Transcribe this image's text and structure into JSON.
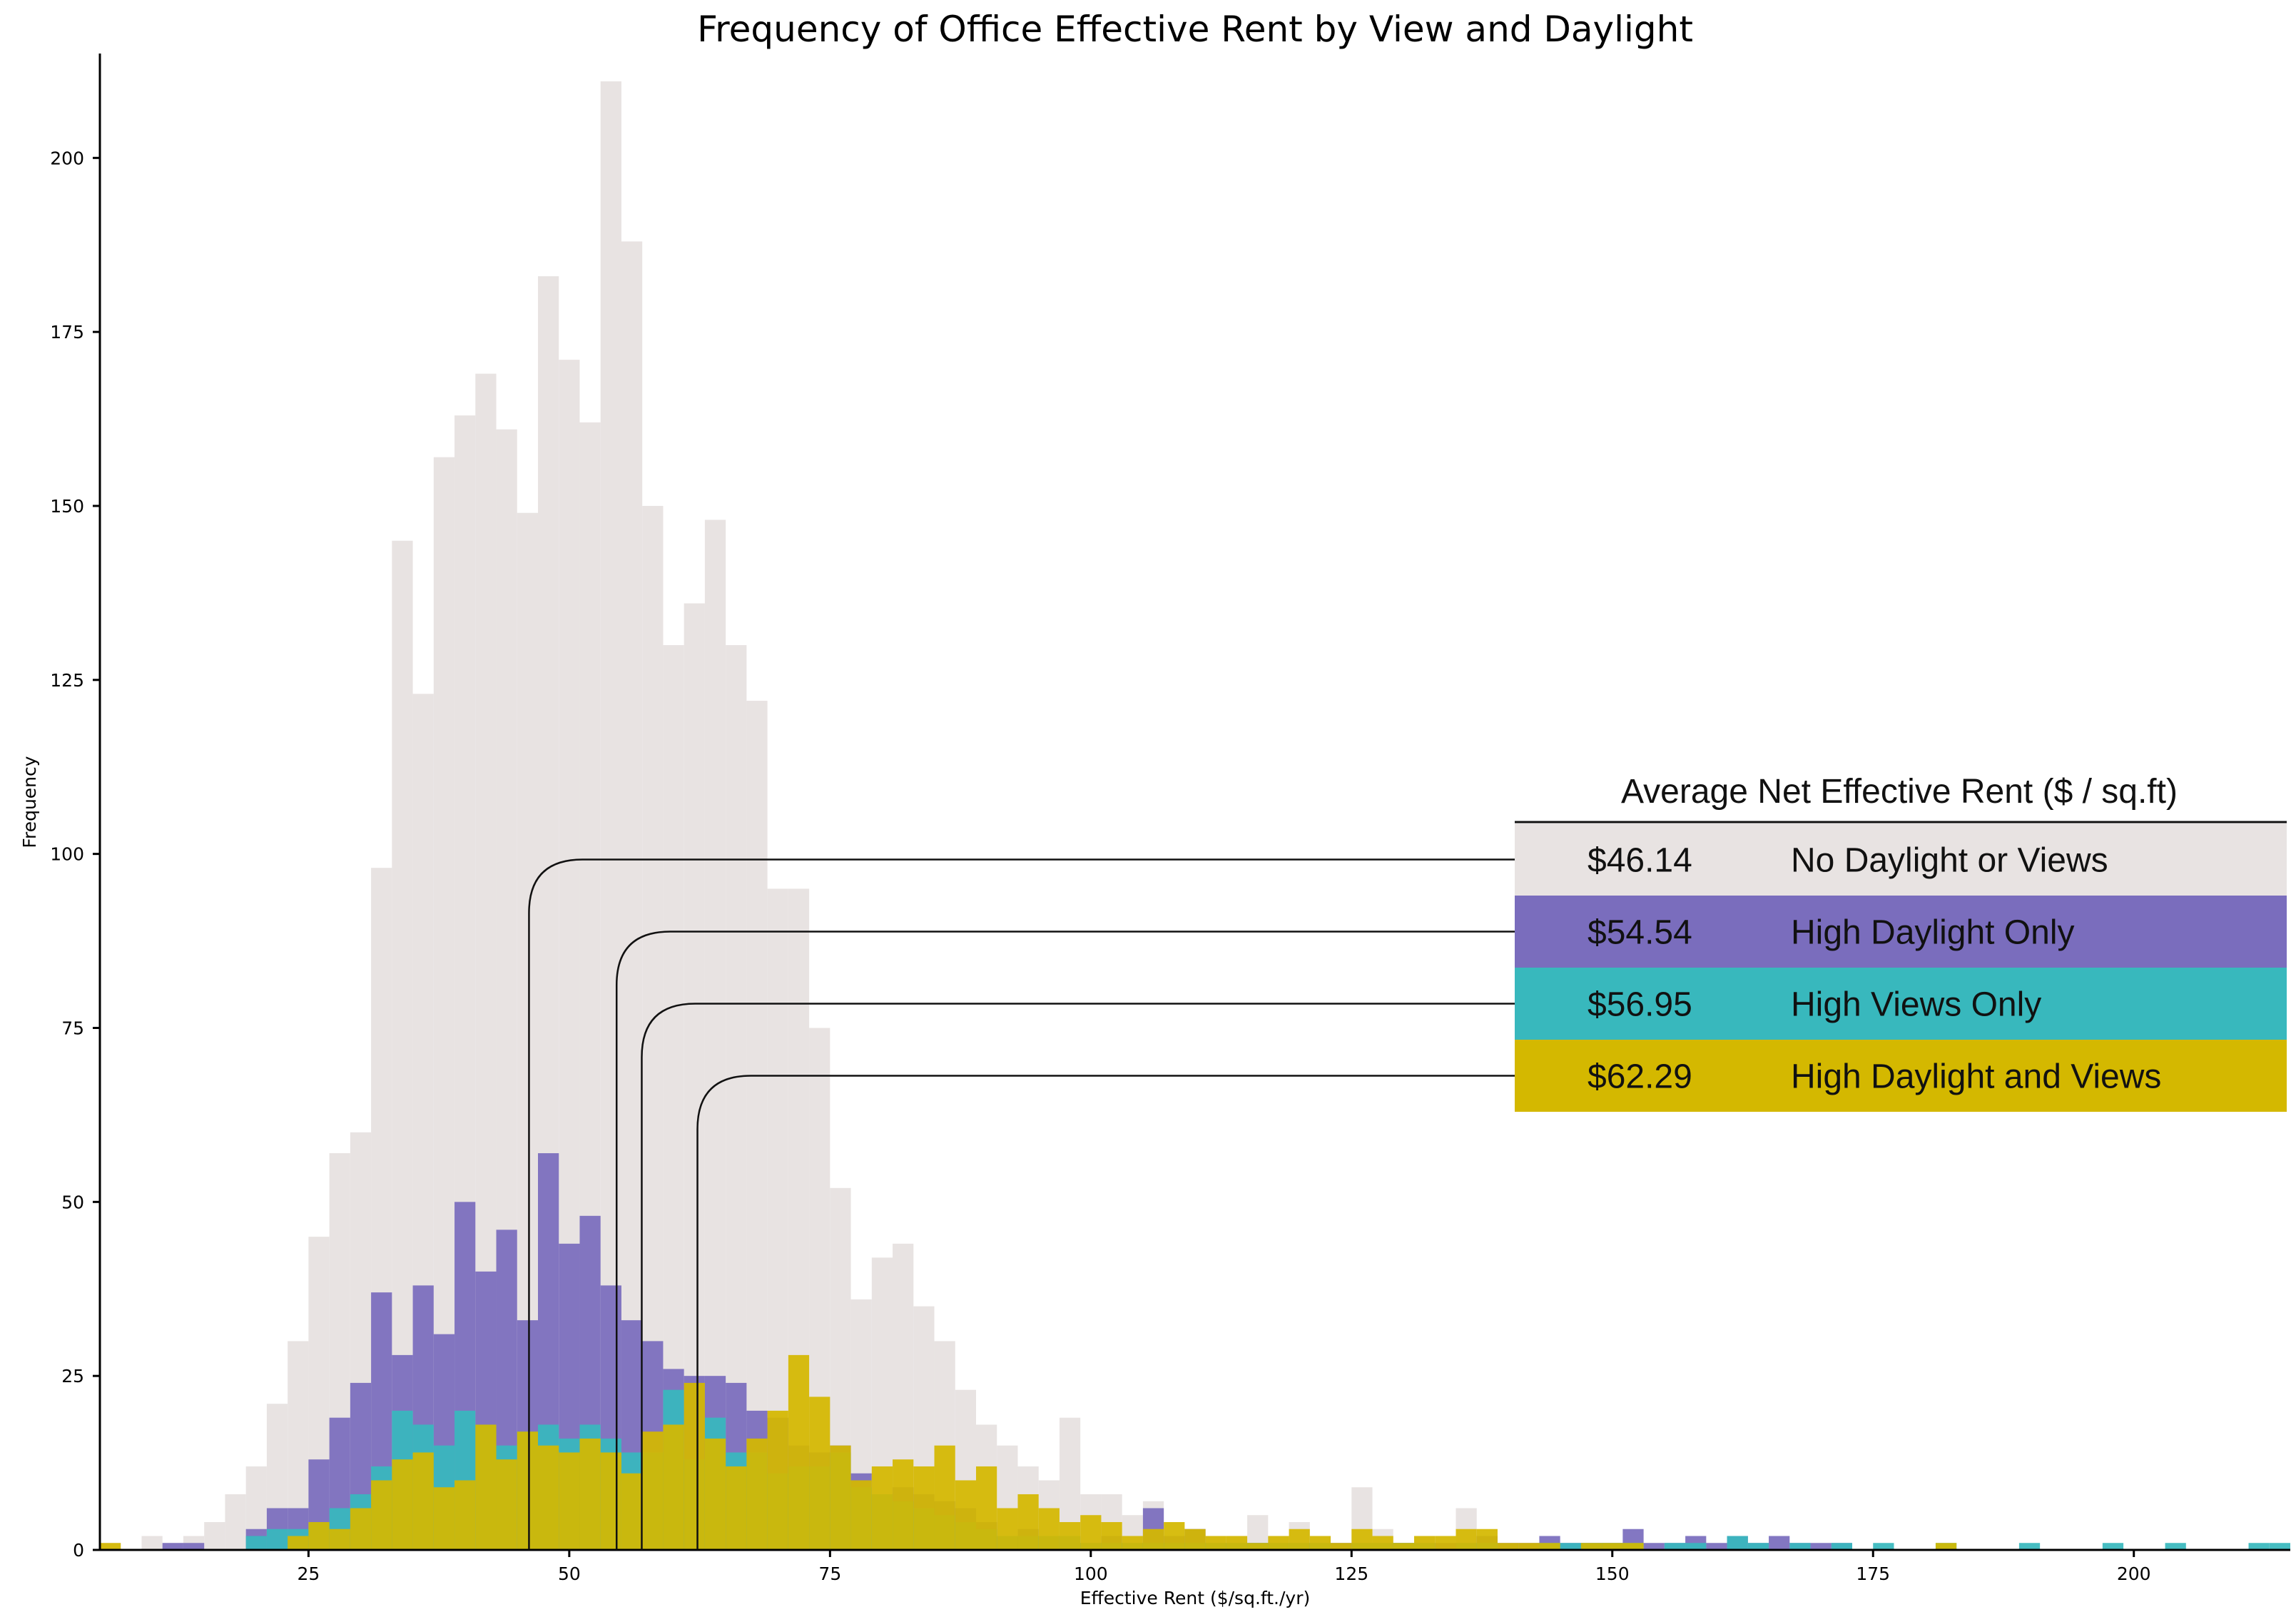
{
  "chart_data": {
    "type": "bar",
    "subtype": "overlaid-histogram",
    "title": "Frequency of Office Effective Rent by View and Daylight",
    "xlabel": "Effective Rent ($/sq.ft./yr)",
    "ylabel": "Frequency",
    "xlim": [
      5,
      215
    ],
    "ylim": [
      0,
      215
    ],
    "bin_width": 2,
    "x_ticks": [
      25,
      50,
      75,
      100,
      125,
      150,
      175,
      200
    ],
    "y_ticks": [
      0,
      25,
      50,
      75,
      100,
      125,
      150,
      175,
      200
    ],
    "grid": false,
    "legend": {
      "title": "Average Net Effective Rent ($ / sq.ft)",
      "placement": "right",
      "entries": [
        {
          "value": "$46.14",
          "label": "No Daylight or Views",
          "mean": 46.14,
          "color": "#e8e3e2",
          "text_color": "#111111"
        },
        {
          "value": "$54.54",
          "label": "High Daylight Only",
          "mean": 54.54,
          "color": "#7a6dbd",
          "text_color": "#111111"
        },
        {
          "value": "$56.95",
          "label": "High Views Only",
          "mean": 56.95,
          "color": "#38b8bd",
          "text_color": "#111111"
        },
        {
          "value": "$62.29",
          "label": "High Daylight and Views",
          "mean": 62.29,
          "color": "#d4b800",
          "text_color": "#111111"
        }
      ]
    },
    "series": [
      {
        "name": "No Daylight or Views",
        "color": "#e8e3e2",
        "x": [
          5,
          7,
          9,
          11,
          13,
          15,
          17,
          19,
          21,
          23,
          25,
          27,
          29,
          31,
          33,
          35,
          37,
          39,
          41,
          43,
          45,
          47,
          49,
          51,
          53,
          55,
          57,
          59,
          61,
          63,
          65,
          67,
          69,
          71,
          73,
          75,
          77,
          79,
          81,
          83,
          85,
          87,
          89,
          91,
          93,
          95,
          97,
          99,
          101,
          103,
          105,
          107,
          109,
          111,
          113,
          115,
          117,
          119,
          121,
          123,
          125,
          127,
          129,
          131,
          133,
          135
        ],
        "values": [
          1,
          0,
          2,
          1,
          2,
          4,
          8,
          12,
          21,
          30,
          45,
          57,
          60,
          98,
          145,
          123,
          157,
          163,
          169,
          161,
          149,
          183,
          171,
          162,
          211,
          188,
          150,
          130,
          136,
          148,
          130,
          122,
          95,
          95,
          75,
          52,
          36,
          42,
          44,
          35,
          30,
          23,
          18,
          15,
          12,
          10,
          19,
          8,
          8,
          5,
          7,
          2,
          3,
          2,
          2,
          5,
          2,
          4,
          2,
          1,
          9,
          3,
          1,
          2,
          1,
          6
        ]
      },
      {
        "name": "High Daylight Only",
        "color": "#7a6dbd",
        "x": [
          11,
          13,
          15,
          17,
          19,
          21,
          23,
          25,
          27,
          29,
          31,
          33,
          35,
          37,
          39,
          41,
          43,
          45,
          47,
          49,
          51,
          53,
          55,
          57,
          59,
          61,
          63,
          65,
          67,
          69,
          71,
          73,
          75,
          77,
          79,
          81,
          83,
          85,
          87,
          89,
          91,
          93,
          95,
          97,
          99,
          101,
          103,
          105,
          107,
          109,
          111,
          113,
          115,
          117,
          119,
          121,
          123,
          125,
          127,
          129,
          131,
          133,
          135,
          137,
          139,
          141,
          143,
          145,
          147,
          149,
          151,
          153,
          155,
          157,
          159,
          161,
          163,
          165,
          167,
          169,
          171
        ],
        "values": [
          1,
          1,
          0,
          0,
          3,
          6,
          6,
          13,
          19,
          24,
          37,
          28,
          38,
          31,
          50,
          40,
          46,
          33,
          57,
          44,
          48,
          38,
          33,
          30,
          26,
          25,
          25,
          24,
          20,
          19,
          15,
          14,
          15,
          11,
          8,
          9,
          8,
          7,
          6,
          4,
          2,
          3,
          2,
          1,
          1,
          2,
          1,
          6,
          2,
          3,
          1,
          1,
          1,
          1,
          1,
          1,
          1,
          1,
          1,
          1,
          1,
          1,
          1,
          2,
          1,
          1,
          2,
          1,
          1,
          1,
          3,
          1,
          1,
          2,
          1,
          2,
          1,
          2,
          1,
          1,
          1
        ]
      },
      {
        "name": "High Views Only",
        "color": "#38b8bd",
        "x": [
          19,
          21,
          23,
          25,
          27,
          29,
          31,
          33,
          35,
          37,
          39,
          41,
          43,
          45,
          47,
          49,
          51,
          53,
          55,
          57,
          59,
          61,
          63,
          65,
          67,
          69,
          71,
          73,
          75,
          77,
          79,
          81,
          83,
          85,
          87,
          89,
          91,
          93,
          95,
          97,
          99,
          101,
          103,
          105,
          107,
          109,
          111,
          113,
          115,
          117,
          119,
          121,
          123,
          125,
          127,
          129,
          131,
          133,
          135,
          137,
          139,
          141,
          143,
          145,
          147,
          149,
          151,
          153,
          155,
          157,
          159,
          161,
          163,
          165,
          167,
          169,
          171,
          173,
          175,
          177,
          179,
          181,
          183,
          185,
          187,
          189,
          191,
          193,
          195,
          197,
          199,
          201,
          203,
          205,
          207,
          209,
          211,
          213
        ],
        "values": [
          2,
          3,
          3,
          4,
          6,
          8,
          12,
          20,
          18,
          15,
          20,
          18,
          15,
          17,
          18,
          16,
          18,
          16,
          14,
          14,
          23,
          13,
          19,
          14,
          14,
          11,
          12,
          12,
          14,
          9,
          8,
          7,
          6,
          5,
          4,
          3,
          2,
          2,
          2,
          2,
          1,
          1,
          1,
          1,
          1,
          1,
          1,
          1,
          1,
          1,
          1,
          1,
          0,
          1,
          1,
          1,
          1,
          0,
          1,
          1,
          0,
          0,
          1,
          1,
          1,
          1,
          1,
          0,
          1,
          1,
          0,
          2,
          1,
          0,
          1,
          0,
          1,
          0,
          1,
          0,
          0,
          1,
          0,
          0,
          0,
          1,
          0,
          0,
          0,
          1,
          0,
          0,
          1,
          0,
          0,
          0,
          1,
          1
        ]
      },
      {
        "name": "High Daylight and Views",
        "color": "#d4b800",
        "x": [
          5,
          7,
          9,
          11,
          13,
          15,
          17,
          19,
          21,
          23,
          25,
          27,
          29,
          31,
          33,
          35,
          37,
          39,
          41,
          43,
          45,
          47,
          49,
          51,
          53,
          55,
          57,
          59,
          61,
          63,
          65,
          67,
          69,
          71,
          73,
          75,
          77,
          79,
          81,
          83,
          85,
          87,
          89,
          91,
          93,
          95,
          97,
          99,
          101,
          103,
          105,
          107,
          109,
          111,
          113,
          115,
          117,
          119,
          121,
          123,
          125,
          127,
          129,
          131,
          133,
          135,
          137,
          139,
          141,
          143,
          145,
          147,
          149,
          151,
          153,
          155,
          157,
          159,
          161,
          163,
          165,
          167,
          169,
          171,
          173,
          175,
          177,
          179,
          181
        ],
        "values": [
          1,
          0,
          0,
          0,
          0,
          0,
          0,
          0,
          0,
          2,
          4,
          3,
          6,
          10,
          13,
          14,
          9,
          10,
          18,
          13,
          17,
          15,
          14,
          16,
          14,
          11,
          17,
          18,
          24,
          16,
          12,
          16,
          20,
          28,
          22,
          15,
          10,
          12,
          13,
          12,
          15,
          10,
          12,
          6,
          8,
          6,
          4,
          5,
          4,
          2,
          3,
          4,
          3,
          2,
          2,
          1,
          2,
          3,
          2,
          1,
          3,
          2,
          1,
          2,
          2,
          3,
          3,
          1,
          1,
          1,
          0,
          1,
          1,
          1,
          0,
          0,
          0,
          0,
          0,
          0,
          0,
          0,
          0,
          0,
          0,
          0,
          0,
          0,
          1
        ]
      }
    ]
  }
}
